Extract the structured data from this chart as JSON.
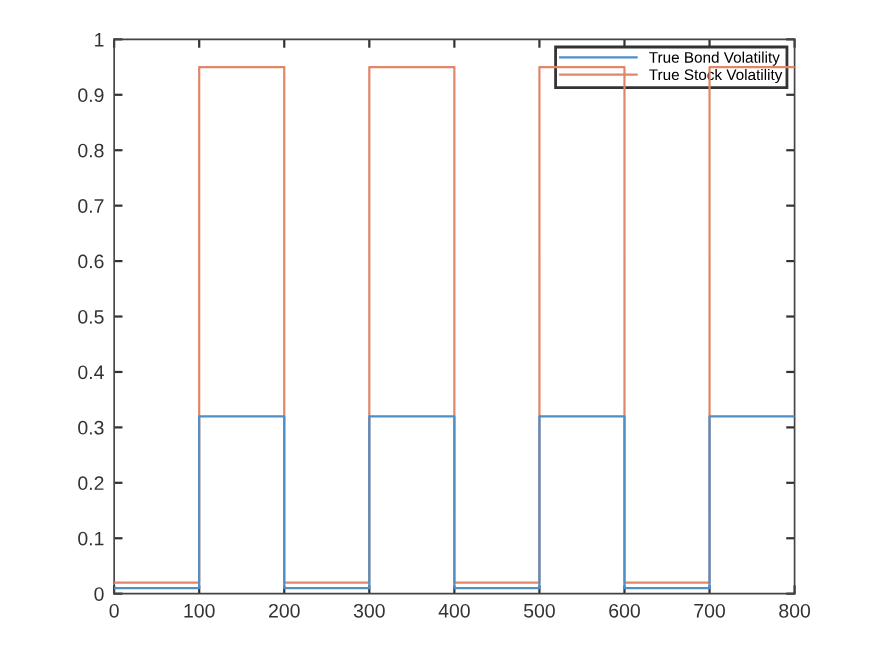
{
  "chart_data": {
    "type": "step",
    "x": [
      0,
      100,
      200,
      300,
      400,
      500,
      600,
      700,
      800
    ],
    "series": [
      {
        "name": "True Bond Volatility",
        "color": "#4d8fc9",
        "values": [
          0.01,
          0.32,
          0.01,
          0.32,
          0.01,
          0.32,
          0.01,
          0.32,
          0.32
        ]
      },
      {
        "name": "True Stock Volatility",
        "color": "#e0876a",
        "values": [
          0.02,
          0.95,
          0.02,
          0.95,
          0.02,
          0.95,
          0.02,
          0.95,
          0.95
        ]
      }
    ],
    "xlim": [
      0,
      800
    ],
    "xticks": [
      0,
      100,
      200,
      300,
      400,
      500,
      600,
      700,
      800
    ],
    "ylim": [
      0,
      1
    ],
    "yticks": [
      0,
      0.1,
      0.2,
      0.3,
      0.4,
      0.5,
      0.6,
      0.7,
      0.8,
      0.9,
      1
    ],
    "legend": "top right",
    "grid": false
  }
}
